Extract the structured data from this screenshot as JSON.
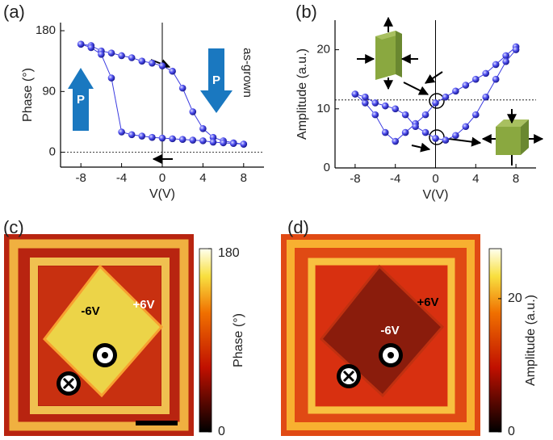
{
  "chart_data": [
    {
      "type": "line",
      "panel_label": "(a)",
      "x_label": "V(V)",
      "y_label": "Phase (°)",
      "x": [
        -8,
        -7,
        -6,
        -5,
        -4,
        -3,
        -2,
        -1,
        0,
        1,
        2,
        3,
        4,
        5,
        6,
        7,
        8
      ],
      "series": [
        {
          "color": "#3a3ae0",
          "values": [
            160,
            158,
            150,
            147,
            143,
            140,
            135,
            132,
            128,
            120,
            95,
            60,
            35,
            22,
            17,
            14,
            12
          ]
        },
        {
          "color": "#3a3ae0",
          "values": [
            160,
            155,
            145,
            110,
            30,
            26,
            24,
            22,
            21,
            20,
            19,
            18,
            17,
            15,
            14,
            13,
            12
          ]
        }
      ],
      "xlim": [
        -10,
        10
      ],
      "xticks": [
        -8,
        -4,
        0,
        4,
        8
      ],
      "ylim": [
        -22,
        192
      ],
      "yticks": [
        0,
        90,
        180
      ],
      "hline": 0,
      "vline": 0,
      "annotations": [
        "as-grown",
        "P",
        "P"
      ]
    },
    {
      "type": "line",
      "panel_label": "(b)",
      "x_label": "V(V)",
      "y_label": "Amplitude (a.u.)",
      "x": [
        -8,
        -7,
        -6,
        -5,
        -4,
        -3,
        -2,
        -1,
        0,
        1,
        2,
        3,
        4,
        5,
        6,
        7,
        8
      ],
      "series": [
        {
          "color": "#3a3ae0",
          "values": [
            12.5,
            11,
            9,
            6,
            4.5,
            6,
            7.5,
            9,
            11,
            12,
            13,
            14,
            15,
            16,
            17.5,
            19,
            20.5
          ]
        },
        {
          "color": "#3a3ae0",
          "values": [
            12.5,
            12,
            11,
            10.5,
            10,
            9,
            7,
            6,
            5,
            4.7,
            5.5,
            7,
            9,
            12,
            15,
            18,
            20
          ]
        }
      ],
      "xlim": [
        -10,
        10
      ],
      "xticks": [
        -8,
        -4,
        0,
        4,
        8
      ],
      "ylim": [
        0,
        25
      ],
      "yticks": [
        0,
        10,
        20
      ],
      "hline": 11.5,
      "vline": 0
    },
    {
      "type": "image",
      "panel_label": "(c)",
      "colorbar_label": "Phase (°)",
      "clim": [
        0,
        180
      ],
      "cticks": [
        0,
        180
      ],
      "annotations": [
        "+6V",
        "-6V"
      ]
    },
    {
      "type": "image",
      "panel_label": "(d)",
      "colorbar_label": "Amplitude  (a.u.)",
      "clim": [
        0,
        27.5
      ],
      "cticks": [
        0,
        20
      ],
      "annotations": [
        "+6V",
        "-6V"
      ]
    }
  ]
}
